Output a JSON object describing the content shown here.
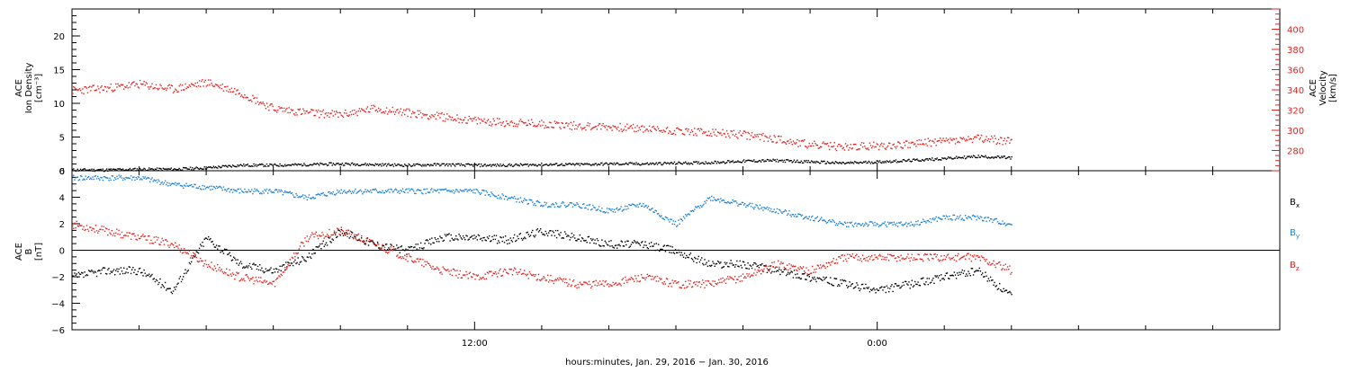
{
  "chart_data": [
    {
      "type": "scatter",
      "panel": "plasma",
      "ylabel_left": [
        "ACE",
        "Ion Density",
        "[cm⁻³]"
      ],
      "ylabel_right": [
        "ACE",
        "Velocity",
        "[km/s]"
      ],
      "ylim_left": [
        0,
        24
      ],
      "ylim_right": [
        260,
        420
      ],
      "yticks_left": [
        "0",
        "5",
        "10",
        "15",
        "20"
      ],
      "yticks_left_values": [
        0,
        5,
        10,
        15,
        20
      ],
      "yticks_right": [
        "280",
        "300",
        "320",
        "340",
        "360",
        "380",
        "400"
      ],
      "yticks_right_values": [
        280,
        300,
        320,
        340,
        360,
        380,
        400
      ],
      "xlim_hours": [
        0,
        36
      ],
      "series": [
        {
          "axis": "left",
          "color": "#000000",
          "x": [
            0,
            1,
            2,
            3,
            4,
            5,
            6,
            7,
            8,
            9,
            10,
            11,
            12,
            13,
            14,
            15,
            16,
            17,
            18,
            19,
            20,
            21,
            22,
            23,
            24,
            25,
            26,
            27,
            28
          ],
          "y": [
            0.2,
            0.2,
            0.3,
            0.3,
            0.5,
            0.9,
            0.9,
            1.0,
            1.1,
            1.0,
            0.9,
            1.0,
            0.9,
            0.9,
            1.0,
            1.0,
            1.1,
            1.1,
            1.2,
            1.3,
            1.5,
            1.6,
            1.4,
            1.2,
            1.4,
            1.6,
            1.9,
            2.2,
            2.0
          ]
        },
        {
          "axis": "right",
          "color": "#e0221f",
          "x": [
            0,
            1,
            2,
            3,
            4,
            5,
            6,
            7,
            8,
            9,
            10,
            11,
            12,
            13,
            14,
            15,
            16,
            17,
            18,
            19,
            20,
            21,
            22,
            23,
            24,
            25,
            26,
            27,
            28
          ],
          "y": [
            340,
            342,
            346,
            341,
            348,
            338,
            322,
            318,
            316,
            322,
            318,
            314,
            310,
            308,
            307,
            305,
            304,
            302,
            300,
            298,
            296,
            292,
            286,
            284,
            285,
            287,
            290,
            292,
            290
          ]
        }
      ]
    },
    {
      "type": "scatter",
      "panel": "magnetic-field",
      "ylabel": [
        "ACE",
        "B",
        "[nT]"
      ],
      "ylim": [
        -6,
        6
      ],
      "yticks": [
        "6",
        "4",
        "2",
        "0",
        "−2",
        "−4",
        "−6"
      ],
      "yticks_values": [
        6,
        4,
        2,
        0,
        -2,
        -4,
        -6
      ],
      "xlim_hours": [
        0,
        36
      ],
      "legend": [
        "B",
        "B",
        "B"
      ],
      "legend_sub": [
        "x",
        "y",
        "z"
      ],
      "series": [
        {
          "name": "Bx",
          "color": "#000000",
          "x": [
            0,
            1,
            2,
            3,
            4,
            5,
            6,
            7,
            8,
            9,
            10,
            11,
            12,
            13,
            14,
            15,
            16,
            17,
            18,
            19,
            20,
            21,
            22,
            23,
            24,
            25,
            26,
            27,
            28
          ],
          "y": [
            -2.0,
            -1.5,
            -1.5,
            -3.0,
            1.0,
            -1.0,
            -1.5,
            -0.5,
            1.5,
            0.5,
            0.0,
            1.0,
            1.0,
            0.8,
            1.5,
            1.0,
            0.5,
            0.5,
            0.0,
            -1.0,
            -1.0,
            -1.5,
            -2.0,
            -2.5,
            -3.0,
            -2.5,
            -2.0,
            -1.5,
            -3.5
          ]
        },
        {
          "name": "By",
          "color": "#1a7fd4",
          "x": [
            0,
            1,
            2,
            3,
            4,
            5,
            6,
            7,
            8,
            9,
            10,
            11,
            12,
            13,
            14,
            15,
            16,
            17,
            18,
            19,
            20,
            21,
            22,
            23,
            24,
            25,
            26,
            27,
            28
          ],
          "y": [
            5.5,
            5.5,
            5.5,
            5.0,
            4.8,
            4.5,
            4.5,
            4.0,
            4.5,
            4.5,
            4.5,
            4.5,
            4.5,
            4.0,
            3.5,
            3.5,
            3.0,
            3.5,
            2.0,
            4.0,
            3.5,
            3.0,
            2.5,
            2.0,
            2.0,
            2.0,
            2.5,
            2.5,
            2.0
          ]
        },
        {
          "name": "Bz",
          "color": "#e0221f",
          "x": [
            0,
            1,
            2,
            3,
            4,
            5,
            6,
            7,
            8,
            9,
            10,
            11,
            12,
            13,
            14,
            15,
            16,
            17,
            18,
            19,
            20,
            21,
            22,
            23,
            24,
            25,
            26,
            27,
            28
          ],
          "y": [
            2.0,
            1.5,
            1.0,
            0.5,
            -1.0,
            -2.0,
            -2.5,
            1.0,
            1.5,
            0.5,
            -0.5,
            -1.5,
            -2.0,
            -1.5,
            -2.0,
            -2.5,
            -2.5,
            -2.0,
            -2.5,
            -2.5,
            -2.0,
            -1.0,
            -1.5,
            -0.5,
            -0.5,
            -0.5,
            -0.5,
            -0.5,
            -1.5
          ]
        }
      ]
    }
  ],
  "x_axis": {
    "tick_labels": [
      "12:00",
      "0:00"
    ],
    "tick_hours": [
      12,
      24
    ],
    "xlabel": "hours:minutes, Jan. 29, 2016 − Jan. 30, 2016"
  }
}
